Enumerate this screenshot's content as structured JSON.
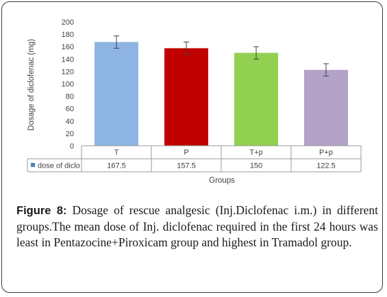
{
  "chart_data": {
    "type": "bar",
    "categories": [
      "T",
      "P",
      "T+p",
      "P+p"
    ],
    "series": [
      {
        "name": "dose of diclo",
        "values": [
          167.5,
          157.5,
          150,
          122.5
        ],
        "error": [
          10,
          10,
          10,
          10
        ],
        "colors": [
          "#8eb4e3",
          "#c00000",
          "#92d050",
          "#b3a2c7"
        ]
      }
    ],
    "ylabel": "Dosage of diclofenac (mg)",
    "xlabel": "Groups",
    "ylim": [
      0,
      200
    ],
    "yticks": [
      0,
      20,
      40,
      60,
      80,
      100,
      120,
      140,
      160,
      180,
      200
    ],
    "legend_placement": "data-table",
    "legend_marker_color": "#4f81bd",
    "data_table": true,
    "grid": false
  },
  "caption": {
    "label": "Figure 8:",
    "text": " Dosage of rescue analgesic (Inj.Diclofenac i.m.) in different groups.The mean dose of Inj. diclofenac required in the first 24 hours was least in Pentazocine+Piroxicam group and highest in Tramadol group."
  }
}
